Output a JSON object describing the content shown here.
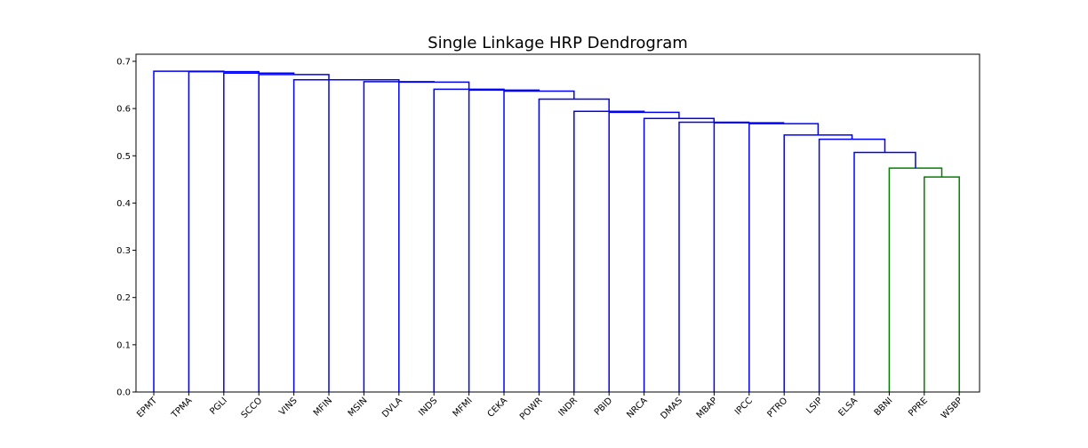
{
  "chart_data": {
    "type": "dendrogram",
    "title": "Single Linkage HRP Dendrogram",
    "xlabel": "",
    "ylabel": "",
    "ylim": [
      0,
      0.715
    ],
    "y_ticks": [
      "0.0",
      "0.1",
      "0.2",
      "0.3",
      "0.4",
      "0.5",
      "0.6",
      "0.7"
    ],
    "leaves": [
      "EPMT",
      "TPMA",
      "PGLI",
      "SCCO",
      "VINS",
      "MFIN",
      "MSIN",
      "DVLA",
      "INDS",
      "MFMI",
      "CEKA",
      "POWR",
      "INDR",
      "PBID",
      "NRCA",
      "DMAS",
      "MBAP",
      "IPCC",
      "PTRO",
      "LSIP",
      "ELSA",
      "BBNI",
      "PPRE",
      "WSBP"
    ],
    "colors": {
      "cluster_main": "#0000ff",
      "cluster_sub": "#008000"
    },
    "merges": [
      {
        "left": 22,
        "right": 23,
        "height": 0.455,
        "color": "cluster_sub"
      },
      {
        "left": 21,
        "right": "m0",
        "height": 0.474,
        "color": "cluster_sub"
      },
      {
        "left": 20,
        "right": "m1",
        "height": 0.507,
        "color": "cluster_main"
      },
      {
        "left": 19,
        "right": "m2",
        "height": 0.535,
        "color": "cluster_main"
      },
      {
        "left": 18,
        "right": "m3",
        "height": 0.544,
        "color": "cluster_main"
      },
      {
        "left": 17,
        "right": "m4",
        "height": 0.568,
        "color": "cluster_main"
      },
      {
        "left": 16,
        "right": "m5",
        "height": 0.57,
        "color": "cluster_main"
      },
      {
        "left": 15,
        "right": "m6",
        "height": 0.571,
        "color": "cluster_main"
      },
      {
        "left": 14,
        "right": "m7",
        "height": 0.579,
        "color": "cluster_main"
      },
      {
        "left": 13,
        "right": "m8",
        "height": 0.592,
        "color": "cluster_main"
      },
      {
        "left": 12,
        "right": "m9",
        "height": 0.594,
        "color": "cluster_main"
      },
      {
        "left": 11,
        "right": "m10",
        "height": 0.62,
        "color": "cluster_main"
      },
      {
        "left": 10,
        "right": "m11",
        "height": 0.637,
        "color": "cluster_main"
      },
      {
        "left": 9,
        "right": "m12",
        "height": 0.639,
        "color": "cluster_main"
      },
      {
        "left": 8,
        "right": "m13",
        "height": 0.641,
        "color": "cluster_main"
      },
      {
        "left": 7,
        "right": "m14",
        "height": 0.656,
        "color": "cluster_main"
      },
      {
        "left": 6,
        "right": "m15",
        "height": 0.657,
        "color": "cluster_main"
      },
      {
        "left": 5,
        "right": "m16",
        "height": 0.661,
        "color": "cluster_main"
      },
      {
        "left": 4,
        "right": "m17",
        "height": 0.661,
        "color": "cluster_main"
      },
      {
        "left": 3,
        "right": "m18",
        "height": 0.672,
        "color": "cluster_main"
      },
      {
        "left": 2,
        "right": "m19",
        "height": 0.675,
        "color": "cluster_main"
      },
      {
        "left": 1,
        "right": "m20",
        "height": 0.678,
        "color": "cluster_main"
      },
      {
        "left": 0,
        "right": "m21",
        "height": 0.679,
        "color": "cluster_main"
      }
    ]
  }
}
